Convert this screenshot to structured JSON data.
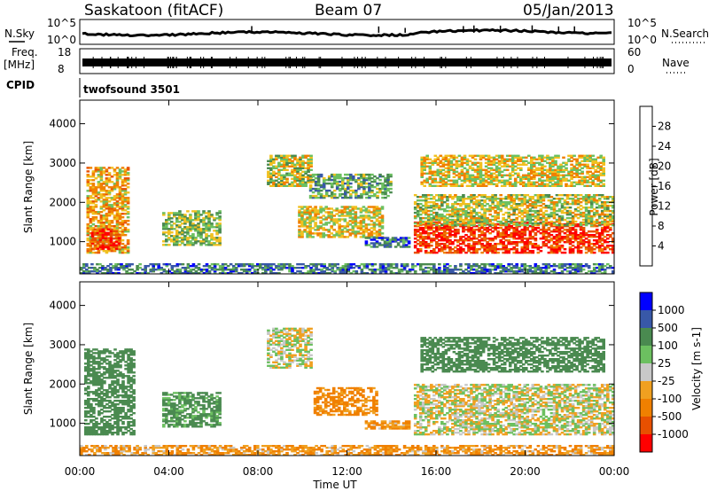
{
  "header": {
    "station": "Saskatoon (fitACF)",
    "beam": "Beam 07",
    "date": "05/Jan/2013"
  },
  "strip_labels": {
    "nsky": "N.Sky",
    "nsky_ticks": [
      "10^5",
      "10^0"
    ],
    "nsearch": "N.Search",
    "nsearch_ticks": [
      "10^5",
      "10^0"
    ],
    "freq_line1": "Freq.",
    "freq_line2": "[MHz]",
    "freq_ticks": [
      "18",
      "8"
    ],
    "nave": "Nave",
    "nave_ticks": [
      "60",
      "0"
    ],
    "cpid": "CPID",
    "cpid_value": "twofsound 3501"
  },
  "colors": {
    "power_scale": [
      "#0000ff",
      "#3858a8",
      "#4a8a50",
      "#6cc060",
      "#f0c020",
      "#f08000",
      "#e85000",
      "#ff0000"
    ],
    "velocity_scale": [
      "#0000ff",
      "#3858a8",
      "#4a8a50",
      "#6cc060",
      "#c8c8c8",
      "#f0a020",
      "#f08000",
      "#e85000",
      "#ff0000"
    ],
    "ground_scatter": "#c8c8c8"
  },
  "chart_data": [
    {
      "type": "heatmap",
      "parameter": "power",
      "ylabel": "Slant Range [km]",
      "yticks": [
        "1000",
        "2000",
        "3000",
        "4000"
      ],
      "ylim": [
        180,
        4600
      ],
      "xlim": [
        "00:00",
        "24:00"
      ],
      "colorbar_label": "Power [dB]",
      "colorbar_ticks": [
        "4",
        "8",
        "12",
        "16",
        "20",
        "24",
        "28"
      ],
      "regions": [
        {
          "t0": 0.3,
          "t1": 2.2,
          "r0": 700,
          "r1": 2900,
          "value": 20
        },
        {
          "t0": 0.5,
          "t1": 1.8,
          "r0": 800,
          "r1": 1300,
          "value": 28
        },
        {
          "t0": 3.7,
          "t1": 6.3,
          "r0": 900,
          "r1": 1800,
          "value": 14
        },
        {
          "t0": 8.4,
          "t1": 10.4,
          "r0": 2400,
          "r1": 3200,
          "value": 16
        },
        {
          "t0": 9.8,
          "t1": 13.6,
          "r0": 1100,
          "r1": 1900,
          "value": 18
        },
        {
          "t0": 10.3,
          "t1": 14.0,
          "r0": 2100,
          "r1": 2700,
          "value": 12
        },
        {
          "t0": 12.8,
          "t1": 14.8,
          "r0": 850,
          "r1": 1100,
          "value": 8
        },
        {
          "t0": 15.0,
          "t1": 24.0,
          "r0": 700,
          "r1": 1500,
          "value": 28
        },
        {
          "t0": 15.0,
          "t1": 24.0,
          "r0": 1400,
          "r1": 2200,
          "value": 16
        },
        {
          "t0": 15.3,
          "t1": 23.5,
          "r0": 2400,
          "r1": 3200,
          "value": 18
        },
        {
          "t0": 0.0,
          "t1": 24.0,
          "r0": 180,
          "r1": 450,
          "value": 8
        }
      ]
    },
    {
      "type": "heatmap",
      "parameter": "velocity",
      "ylabel": "Slant Range [km]",
      "yticks": [
        "1000",
        "2000",
        "3000",
        "4000"
      ],
      "ylim": [
        180,
        4600
      ],
      "xlim": [
        "00:00",
        "24:00"
      ],
      "xticks": [
        "00:00",
        "04:00",
        "08:00",
        "12:00",
        "16:00",
        "20:00",
        "00:00"
      ],
      "xlabel": "Time UT",
      "colorbar_label": "Velocity [m s-1]",
      "colorbar_ticks": [
        "1000",
        "500",
        "100",
        "25",
        "-25",
        "-100",
        "-500",
        "-1000"
      ],
      "regions": [
        {
          "t0": 0.2,
          "t1": 2.4,
          "r0": 700,
          "r1": 2900,
          "value": 200
        },
        {
          "t0": 3.7,
          "t1": 6.3,
          "r0": 900,
          "r1": 1800,
          "value": 150
        },
        {
          "t0": 8.4,
          "t1": 10.4,
          "r0": 2400,
          "r1": 3400,
          "value": 0
        },
        {
          "t0": 10.5,
          "t1": 13.3,
          "r0": 1200,
          "r1": 1900,
          "value": -150
        },
        {
          "t0": 12.8,
          "t1": 14.8,
          "r0": 850,
          "r1": 1050,
          "value": -100
        },
        {
          "t0": 15.0,
          "t1": 24.0,
          "r0": 700,
          "r1": 2000,
          "value": 0
        },
        {
          "t0": 15.3,
          "t1": 23.5,
          "r0": 2300,
          "r1": 3200,
          "value": 200
        },
        {
          "t0": 0.0,
          "t1": 24.0,
          "r0": 180,
          "r1": 450,
          "value": -100
        }
      ]
    }
  ]
}
